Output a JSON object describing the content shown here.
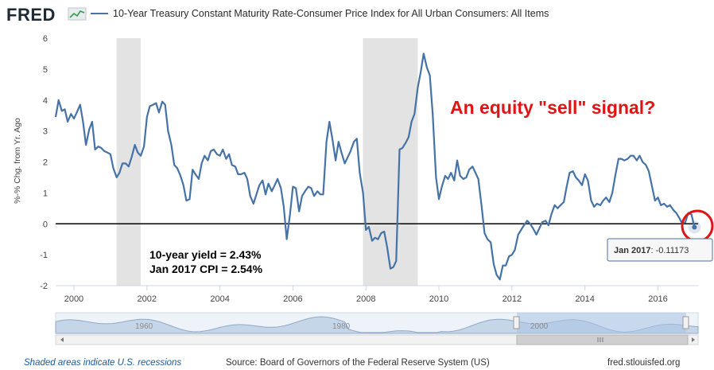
{
  "header": {
    "logo": "FRED",
    "title": "10-Year Treasury Constant Maturity Rate-Consumer Price Index for All Urban Consumers: All Items"
  },
  "colors": {
    "series": "#4572a7",
    "recession": "#e3e3e3",
    "zero_line": "#000000",
    "red": "#e01414"
  },
  "chart_data": {
    "type": "line",
    "ylabel": "%-% Chg. from Yr. Ago",
    "xlim": [
      1999.5,
      2017.1
    ],
    "ylim": [
      -2,
      6
    ],
    "yticks": [
      "-2",
      "-1",
      "0",
      "1",
      "2",
      "3",
      "4",
      "5",
      "6"
    ],
    "xticks": [
      "2000",
      "2002",
      "2004",
      "2006",
      "2008",
      "2010",
      "2012",
      "2014",
      "2016"
    ],
    "recessions": [
      [
        2001.17,
        2001.83
      ],
      [
        2007.92,
        2009.42
      ]
    ],
    "series": [
      {
        "points": [
          [
            1999.5,
            3.45
          ],
          [
            1999.58,
            4.0
          ],
          [
            1999.67,
            3.65
          ],
          [
            1999.75,
            3.7
          ],
          [
            1999.83,
            3.3
          ],
          [
            1999.92,
            3.55
          ],
          [
            2000.0,
            3.4
          ],
          [
            2000.08,
            3.6
          ],
          [
            2000.17,
            3.85
          ],
          [
            2000.25,
            3.3
          ],
          [
            2000.33,
            2.55
          ],
          [
            2000.42,
            3.05
          ],
          [
            2000.5,
            3.3
          ],
          [
            2000.58,
            2.4
          ],
          [
            2000.67,
            2.5
          ],
          [
            2000.75,
            2.45
          ],
          [
            2000.83,
            2.35
          ],
          [
            2000.92,
            2.3
          ],
          [
            2001.0,
            2.25
          ],
          [
            2001.08,
            1.8
          ],
          [
            2001.17,
            1.5
          ],
          [
            2001.25,
            1.65
          ],
          [
            2001.33,
            1.95
          ],
          [
            2001.42,
            1.95
          ],
          [
            2001.5,
            1.85
          ],
          [
            2001.58,
            2.15
          ],
          [
            2001.67,
            2.55
          ],
          [
            2001.75,
            2.3
          ],
          [
            2001.83,
            2.2
          ],
          [
            2001.92,
            2.5
          ],
          [
            2002.0,
            3.45
          ],
          [
            2002.08,
            3.8
          ],
          [
            2002.17,
            3.85
          ],
          [
            2002.25,
            3.9
          ],
          [
            2002.33,
            3.6
          ],
          [
            2002.42,
            3.95
          ],
          [
            2002.5,
            3.85
          ],
          [
            2002.58,
            3.0
          ],
          [
            2002.67,
            2.55
          ],
          [
            2002.75,
            1.9
          ],
          [
            2002.83,
            1.8
          ],
          [
            2002.92,
            1.55
          ],
          [
            2003.0,
            1.25
          ],
          [
            2003.08,
            0.75
          ],
          [
            2003.17,
            0.8
          ],
          [
            2003.25,
            1.75
          ],
          [
            2003.33,
            1.6
          ],
          [
            2003.42,
            1.45
          ],
          [
            2003.5,
            1.95
          ],
          [
            2003.58,
            2.2
          ],
          [
            2003.67,
            2.05
          ],
          [
            2003.75,
            2.35
          ],
          [
            2003.83,
            2.4
          ],
          [
            2003.92,
            2.25
          ],
          [
            2004.0,
            2.2
          ],
          [
            2004.08,
            2.4
          ],
          [
            2004.17,
            2.1
          ],
          [
            2004.25,
            2.25
          ],
          [
            2004.33,
            1.9
          ],
          [
            2004.42,
            1.85
          ],
          [
            2004.5,
            1.6
          ],
          [
            2004.58,
            1.6
          ],
          [
            2004.67,
            1.65
          ],
          [
            2004.75,
            1.45
          ],
          [
            2004.83,
            0.9
          ],
          [
            2004.92,
            0.65
          ],
          [
            2005.0,
            0.95
          ],
          [
            2005.08,
            1.25
          ],
          [
            2005.17,
            1.4
          ],
          [
            2005.25,
            0.95
          ],
          [
            2005.33,
            1.3
          ],
          [
            2005.42,
            1.05
          ],
          [
            2005.5,
            1.25
          ],
          [
            2005.58,
            1.45
          ],
          [
            2005.67,
            1.15
          ],
          [
            2005.75,
            0.55
          ],
          [
            2005.83,
            -0.5
          ],
          [
            2005.92,
            0.3
          ],
          [
            2006.0,
            1.2
          ],
          [
            2006.08,
            1.15
          ],
          [
            2006.17,
            0.4
          ],
          [
            2006.25,
            0.9
          ],
          [
            2006.33,
            1.05
          ],
          [
            2006.42,
            1.2
          ],
          [
            2006.5,
            1.15
          ],
          [
            2006.58,
            0.9
          ],
          [
            2006.67,
            1.05
          ],
          [
            2006.75,
            0.95
          ],
          [
            2006.83,
            0.95
          ],
          [
            2006.92,
            2.65
          ],
          [
            2007.0,
            3.3
          ],
          [
            2007.08,
            2.75
          ],
          [
            2007.17,
            2.05
          ],
          [
            2007.25,
            2.65
          ],
          [
            2007.33,
            2.3
          ],
          [
            2007.42,
            1.95
          ],
          [
            2007.5,
            2.15
          ],
          [
            2007.58,
            2.35
          ],
          [
            2007.67,
            2.65
          ],
          [
            2007.75,
            2.75
          ],
          [
            2007.83,
            1.65
          ],
          [
            2007.92,
            1.0
          ],
          [
            2008.0,
            -0.2
          ],
          [
            2008.08,
            -0.1
          ],
          [
            2008.17,
            -0.55
          ],
          [
            2008.25,
            -0.45
          ],
          [
            2008.33,
            -0.5
          ],
          [
            2008.42,
            -0.3
          ],
          [
            2008.5,
            -0.25
          ],
          [
            2008.58,
            -0.75
          ],
          [
            2008.67,
            -1.45
          ],
          [
            2008.75,
            -1.4
          ],
          [
            2008.83,
            -1.2
          ],
          [
            2008.92,
            2.4
          ],
          [
            2009.0,
            2.45
          ],
          [
            2009.08,
            2.6
          ],
          [
            2009.17,
            2.8
          ],
          [
            2009.25,
            3.3
          ],
          [
            2009.33,
            3.55
          ],
          [
            2009.42,
            4.4
          ],
          [
            2009.5,
            4.9
          ],
          [
            2009.58,
            5.5
          ],
          [
            2009.67,
            5.05
          ],
          [
            2009.75,
            4.8
          ],
          [
            2009.83,
            3.55
          ],
          [
            2009.92,
            1.5
          ],
          [
            2010.0,
            0.8
          ],
          [
            2010.08,
            1.2
          ],
          [
            2010.17,
            1.55
          ],
          [
            2010.25,
            1.45
          ],
          [
            2010.33,
            1.65
          ],
          [
            2010.42,
            1.4
          ],
          [
            2010.5,
            2.05
          ],
          [
            2010.58,
            1.55
          ],
          [
            2010.67,
            1.45
          ],
          [
            2010.75,
            1.5
          ],
          [
            2010.83,
            1.75
          ],
          [
            2010.92,
            1.85
          ],
          [
            2011.0,
            1.65
          ],
          [
            2011.08,
            1.45
          ],
          [
            2011.17,
            0.55
          ],
          [
            2011.25,
            -0.3
          ],
          [
            2011.33,
            -0.5
          ],
          [
            2011.42,
            -0.6
          ],
          [
            2011.5,
            -1.3
          ],
          [
            2011.58,
            -1.65
          ],
          [
            2011.67,
            -1.8
          ],
          [
            2011.75,
            -1.35
          ],
          [
            2011.83,
            -1.35
          ],
          [
            2011.92,
            -1.05
          ],
          [
            2012.0,
            -1.0
          ],
          [
            2012.08,
            -0.85
          ],
          [
            2012.17,
            -0.35
          ],
          [
            2012.25,
            -0.2
          ],
          [
            2012.33,
            -0.05
          ],
          [
            2012.42,
            0.1
          ],
          [
            2012.5,
            0.0
          ],
          [
            2012.58,
            -0.15
          ],
          [
            2012.67,
            -0.35
          ],
          [
            2012.75,
            -0.15
          ],
          [
            2012.83,
            0.05
          ],
          [
            2012.92,
            0.1
          ],
          [
            2013.0,
            -0.05
          ],
          [
            2013.08,
            0.3
          ],
          [
            2013.17,
            0.6
          ],
          [
            2013.25,
            0.5
          ],
          [
            2013.33,
            0.6
          ],
          [
            2013.42,
            0.7
          ],
          [
            2013.5,
            1.2
          ],
          [
            2013.58,
            1.65
          ],
          [
            2013.67,
            1.7
          ],
          [
            2013.75,
            1.5
          ],
          [
            2013.83,
            1.4
          ],
          [
            2013.92,
            1.25
          ],
          [
            2014.0,
            1.6
          ],
          [
            2014.08,
            1.4
          ],
          [
            2014.17,
            0.75
          ],
          [
            2014.25,
            0.55
          ],
          [
            2014.33,
            0.65
          ],
          [
            2014.42,
            0.6
          ],
          [
            2014.5,
            0.75
          ],
          [
            2014.58,
            0.85
          ],
          [
            2014.67,
            0.7
          ],
          [
            2014.75,
            1.0
          ],
          [
            2014.83,
            1.55
          ],
          [
            2014.92,
            2.1
          ],
          [
            2015.0,
            2.1
          ],
          [
            2015.08,
            2.05
          ],
          [
            2015.17,
            2.1
          ],
          [
            2015.25,
            2.2
          ],
          [
            2015.33,
            2.2
          ],
          [
            2015.42,
            2.05
          ],
          [
            2015.5,
            2.2
          ],
          [
            2015.58,
            2.0
          ],
          [
            2015.67,
            1.9
          ],
          [
            2015.75,
            1.7
          ],
          [
            2015.83,
            1.25
          ],
          [
            2015.92,
            0.75
          ],
          [
            2016.0,
            0.85
          ],
          [
            2016.08,
            0.6
          ],
          [
            2016.17,
            0.65
          ],
          [
            2016.25,
            0.55
          ],
          [
            2016.33,
            0.6
          ],
          [
            2016.42,
            0.45
          ],
          [
            2016.5,
            0.35
          ],
          [
            2016.58,
            0.2
          ],
          [
            2016.67,
            0.0
          ],
          [
            2016.75,
            0.05
          ],
          [
            2016.83,
            0.35
          ],
          [
            2016.92,
            0.3
          ],
          [
            2017.0,
            -0.11
          ]
        ]
      }
    ],
    "annotations": [
      "An equity \"sell\" signal?",
      "10-year yield = 2.43%",
      "Jan 2017 CPI = 2.54%"
    ],
    "tooltip": {
      "label": "Jan 2017",
      "value": ": -0.11173"
    }
  },
  "navigator": {
    "ticks": [
      "1960",
      "1980",
      "2000"
    ]
  },
  "footer": {
    "left": "Shaded areas indicate U.S. recessions",
    "center": "Source: Board of Governors of the Federal Reserve System (US)",
    "right": "fred.stlouisfed.org"
  }
}
